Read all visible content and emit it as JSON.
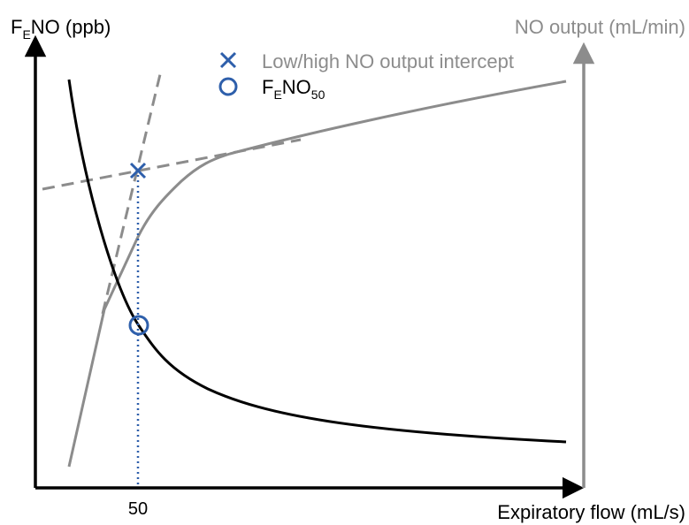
{
  "colors": {
    "feno_curve": "#000000",
    "output_curve": "#8c8c8c",
    "asymptote": "#8c8c8c",
    "marker": "#2e5fab",
    "axis_left": "#000000",
    "axis_right": "#8c8c8c",
    "text_dark": "#000000",
    "text_gray": "#8c8c8c"
  },
  "chart_data": {
    "type": "line",
    "ylabel_left": {
      "main": "F",
      "sub": "E",
      "rest": "NO (ppb)"
    },
    "ylabel_right": "NO output (mL/min)",
    "xlabel": "Expiratory flow (mL/s)",
    "x_tick_labels": [
      "50"
    ],
    "legend": {
      "intercept_symbol": "×",
      "intercept_label": "Low/high NO output intercept",
      "feno50_symbol": "○",
      "feno50_label": {
        "main": "F",
        "sub": "E",
        "rest": "NO",
        "sub2": "50"
      }
    },
    "legend_placement": "top-center",
    "grid": false
  }
}
